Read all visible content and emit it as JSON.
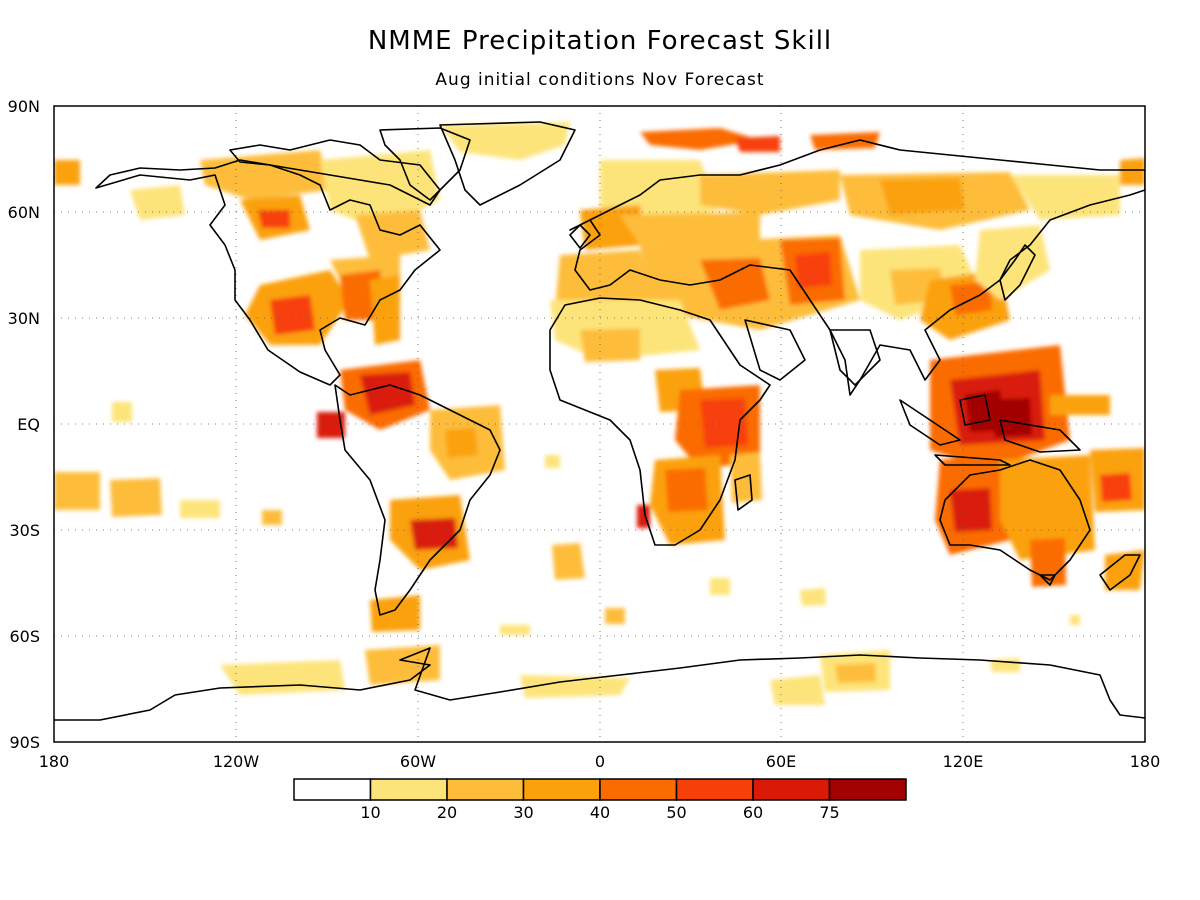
{
  "title": "NMME Precipitation Forecast Skill",
  "subtitle": "Aug initial conditions  Nov Forecast",
  "map": {
    "lat_labels": [
      "90N",
      "60N",
      "30N",
      "EQ",
      "30S",
      "60S",
      "90S"
    ],
    "lon_labels": [
      "180",
      "120W",
      "60W",
      "0",
      "60E",
      "120E",
      "180"
    ]
  },
  "colorbar": {
    "colors": [
      "#ffffff",
      "#fde47a",
      "#fdbd3a",
      "#fba10b",
      "#fb6c00",
      "#f73f0a",
      "#d91a07",
      "#a20202"
    ],
    "labels": [
      "10",
      "20",
      "30",
      "40",
      "50",
      "60",
      "75"
    ]
  }
}
